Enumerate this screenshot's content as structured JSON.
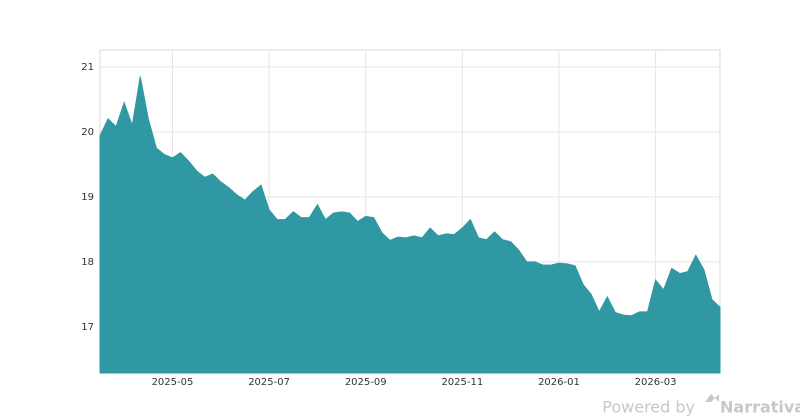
{
  "chart_data": {
    "type": "area",
    "categories": [
      null,
      null,
      null,
      null,
      null,
      null,
      null,
      null,
      null,
      "2025-05",
      null,
      null,
      null,
      null,
      null,
      null,
      null,
      null,
      null,
      null,
      null,
      "2025-07",
      null,
      null,
      null,
      null,
      null,
      null,
      null,
      null,
      null,
      null,
      null,
      "2025-09",
      null,
      null,
      null,
      null,
      null,
      null,
      null,
      null,
      null,
      null,
      null,
      "2025-11",
      null,
      null,
      null,
      null,
      null,
      null,
      null,
      null,
      null,
      null,
      null,
      "2026-01",
      null,
      null,
      null,
      null,
      null,
      null,
      null,
      null,
      null,
      null,
      null,
      "2026-03",
      null,
      null,
      null,
      null,
      null,
      null,
      null,
      null
    ],
    "values": [
      19.94,
      20.2,
      20.08,
      20.45,
      20.1,
      20.85,
      20.2,
      19.75,
      19.65,
      19.6,
      19.68,
      19.55,
      19.4,
      19.3,
      19.35,
      19.23,
      19.14,
      19.03,
      18.95,
      19.08,
      19.18,
      18.8,
      18.65,
      18.65,
      18.77,
      18.68,
      18.68,
      18.88,
      18.65,
      18.75,
      18.77,
      18.75,
      18.62,
      18.7,
      18.68,
      18.45,
      18.33,
      18.38,
      18.37,
      18.4,
      18.37,
      18.52,
      18.4,
      18.43,
      18.42,
      18.52,
      18.65,
      18.37,
      18.34,
      18.46,
      18.34,
      18.31,
      18.18,
      18.0,
      18.0,
      17.95,
      17.95,
      17.98,
      17.97,
      17.94,
      17.65,
      17.5,
      17.23,
      17.46,
      17.22,
      17.18,
      17.17,
      17.23,
      17.23,
      17.72,
      17.57,
      17.9,
      17.82,
      17.85,
      18.1,
      17.88,
      17.42,
      17.3
    ],
    "color": "#2f98a3",
    "ylim": [
      16.29,
      21.26
    ],
    "yticks": [
      17,
      18,
      19,
      20,
      21
    ],
    "grid": true,
    "watermark": "Powered by",
    "brand": "Narrativa"
  }
}
